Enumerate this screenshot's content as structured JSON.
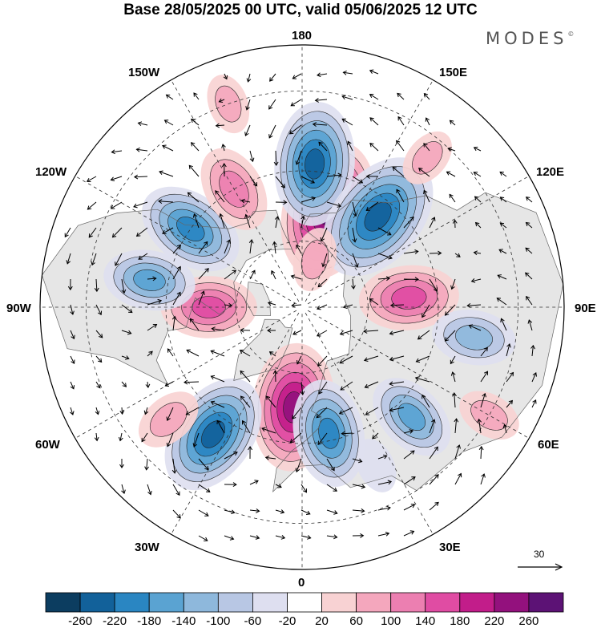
{
  "title": "Base 28/05/2025 00 UTC, valid 05/06/2025 12 UTC",
  "brand": {
    "text": "MODES",
    "mark": "©"
  },
  "longitude_labels": {
    "lon_180": "180",
    "lon_150e": "150E",
    "lon_120e": "120E",
    "lon_90e": "90E",
    "lon_60e": "60E",
    "lon_30e": "30E",
    "lon_0": "0",
    "lon_30w": "30W",
    "lon_60w": "60W",
    "lon_90w": "90W",
    "lon_120w": "120W",
    "lon_150w": "150W"
  },
  "reference_vector": {
    "value": "30"
  },
  "colorbar": {
    "colors": [
      "#0c3d60",
      "#12619a",
      "#2a86c2",
      "#5aa3d2",
      "#8eb8dc",
      "#b8c7e4",
      "#dedff0",
      "#ffffff",
      "#f8d2d3",
      "#f4a7bd",
      "#ec7fb1",
      "#e04ca3",
      "#c21d8a",
      "#93117d",
      "#5c1275"
    ],
    "ticks": [
      "-260",
      "-220",
      "-180",
      "-140",
      "-100",
      "-60",
      "-20",
      "20",
      "60",
      "100",
      "140",
      "180",
      "220",
      "260"
    ]
  },
  "anomalies": [
    {
      "lat": 60,
      "lon": 165,
      "value": 240
    },
    {
      "lat": 48,
      "lon": 175,
      "value": -200
    },
    {
      "lat": 55,
      "lon": 140,
      "value": -230
    },
    {
      "lat": 58,
      "lon": 95,
      "value": 140
    },
    {
      "lat": 40,
      "lon": 80,
      "value": -100
    },
    {
      "lat": 45,
      "lon": 45,
      "value": -120
    },
    {
      "lat": 40,
      "lon": 25,
      "value": -30
    },
    {
      "lat": 60,
      "lon": -5,
      "value": 210
    },
    {
      "lat": 52,
      "lon": 12,
      "value": -160
    },
    {
      "lat": 45,
      "lon": -35,
      "value": -200
    },
    {
      "lat": 40,
      "lon": -50,
      "value": 60
    },
    {
      "lat": 62,
      "lon": -90,
      "value": 130
    },
    {
      "lat": 45,
      "lon": -100,
      "value": -120
    },
    {
      "lat": 50,
      "lon": -125,
      "value": -160
    },
    {
      "lat": 50,
      "lon": -150,
      "value": 110
    },
    {
      "lat": 75,
      "lon": 165,
      "value": 50
    },
    {
      "lat": 35,
      "lon": 140,
      "value": 40
    },
    {
      "lat": 30,
      "lon": -160,
      "value": 40
    },
    {
      "lat": 30,
      "lon": 60,
      "value": 50
    }
  ]
}
